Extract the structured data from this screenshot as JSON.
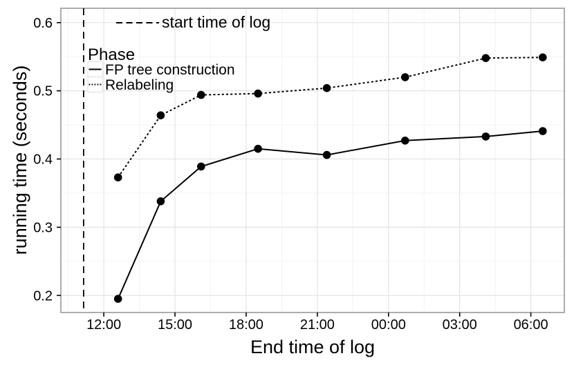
{
  "chart_data": {
    "type": "line",
    "title": "",
    "xlabel": "End time of log",
    "ylabel": "running time (seconds)",
    "x_unit": "hour of day (values greater than 24 are past midnight)",
    "x_axis": {
      "tick_labels": [
        "12:00",
        "15:00",
        "18:00",
        "21:00",
        "00:00",
        "03:00",
        "06:00"
      ],
      "tick_hours": [
        12,
        15,
        18,
        21,
        24,
        27,
        30
      ],
      "minor_hours": [
        10.5,
        13.5,
        16.5,
        19.5,
        22.5,
        25.5,
        28.5
      ],
      "range_hours": [
        10.19,
        31.41
      ]
    },
    "y_axis": {
      "tick_labels": [
        "0.2",
        "0.3",
        "0.4",
        "0.5",
        "0.6"
      ],
      "ticks": [
        0.2,
        0.3,
        0.4,
        0.5,
        0.6
      ],
      "minor_ticks": [
        0.25,
        0.35,
        0.45,
        0.55
      ],
      "range": [
        0.175,
        0.621
      ]
    },
    "x_hours": [
      12.6,
      14.4,
      16.1,
      18.5,
      21.4,
      24.7,
      28.1,
      30.5
    ],
    "series": [
      {
        "name": "FP tree construction",
        "linetype": "solid",
        "values": [
          0.195,
          0.338,
          0.389,
          0.415,
          0.406,
          0.427,
          0.433,
          0.441
        ]
      },
      {
        "name": "Relabeling",
        "linetype": "dotted",
        "values": [
          0.373,
          0.464,
          0.494,
          0.496,
          0.504,
          0.52,
          0.548,
          0.549
        ]
      }
    ],
    "legend": {
      "title": "Phase",
      "position": "inside-top-left"
    },
    "annotation": {
      "label": "start time of log",
      "line_style": "dashed"
    },
    "reference_line": {
      "orientation": "vertical",
      "x_hours": 11.15,
      "style": "dashed"
    },
    "grid": "major+minor",
    "colors": {
      "foreground": "#000000",
      "grid_major": "#e3e3e3",
      "grid_minor": "#f2f2f2",
      "panel_border": "#a3a3a3",
      "background": "#ffffff",
      "legend_key_border": "#dcdcdc"
    }
  }
}
